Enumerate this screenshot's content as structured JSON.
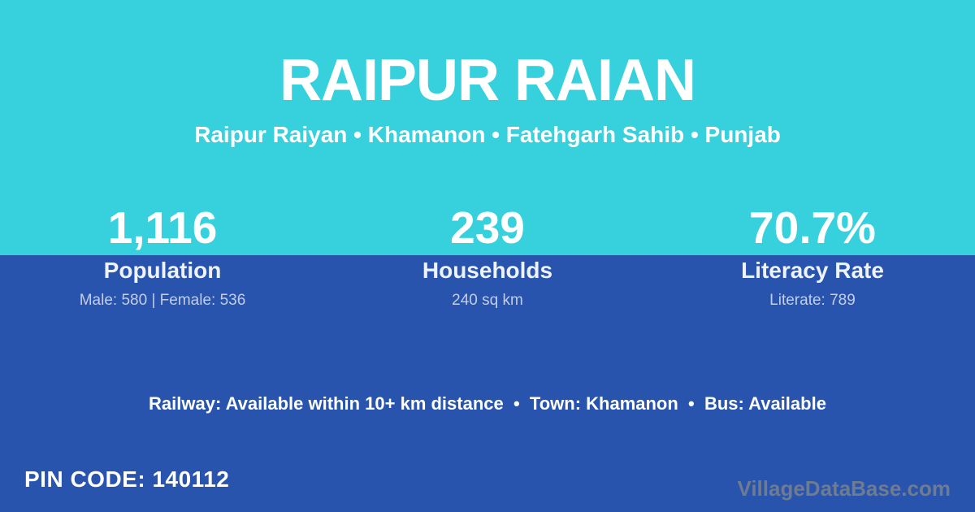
{
  "card": {
    "title": "RAIPUR RAIAN",
    "subtitle": "Raipur Raiyan • Khamanon • Fatehgarh Sahib • Punjab",
    "stats": [
      {
        "value": "1,116",
        "label": "Population",
        "sub": "Male: 580 | Female: 536"
      },
      {
        "value": "239",
        "label": "Households",
        "sub": "240 sq km"
      },
      {
        "value": "70.7%",
        "label": "Literacy Rate",
        "sub": "Literate: 789"
      }
    ],
    "info_line": "Railway: Available within 10+ km distance  •  Town: Khamanon  •  Bus: Available",
    "pin_code": "PIN CODE: 140112",
    "watermark": "VillageDataBase.com",
    "colors": {
      "top_bg": "#37d0dd",
      "bottom_bg": "#2854ad",
      "text_primary": "#ffffff",
      "text_muted": "#c3cde6",
      "watermark": "#6f7b91"
    }
  }
}
